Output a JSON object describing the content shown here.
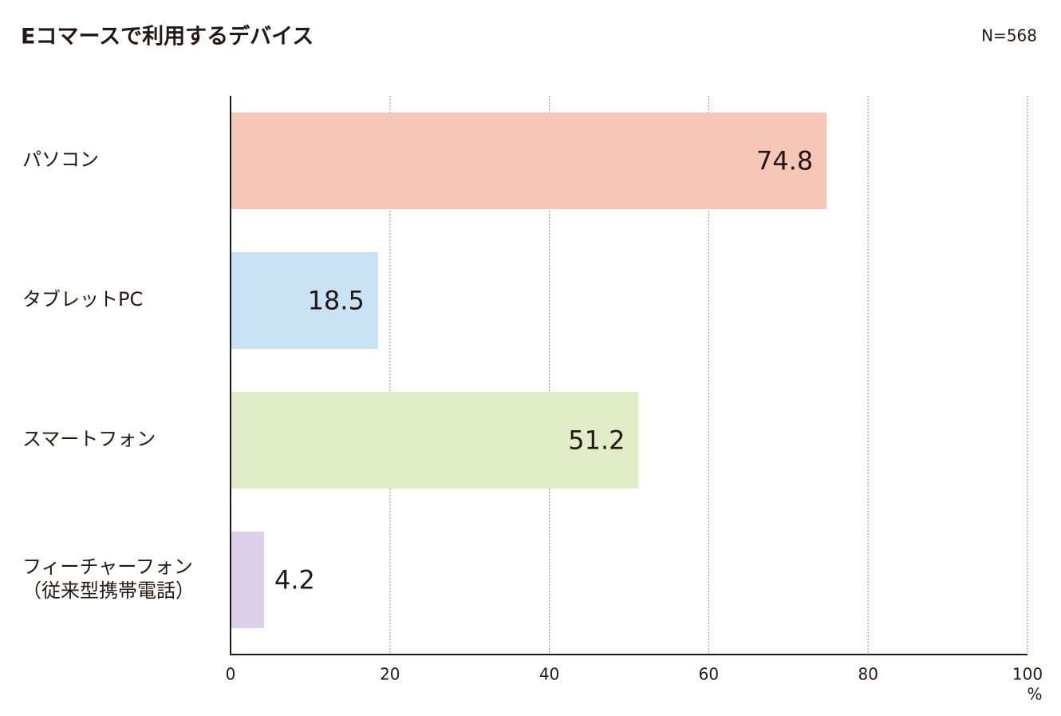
{
  "chart_data": {
    "type": "bar",
    "orientation": "horizontal",
    "title": "Eコマースで利用するデバイス",
    "annotation": "N=568",
    "categories": [
      "パソコン",
      "タブレットPC",
      "スマートフォン",
      "フィーチャーフォン\n（従来型携帯電話）"
    ],
    "values": [
      74.8,
      18.5,
      51.2,
      4.2
    ],
    "colors": [
      "#f6c6b6",
      "#c9e2f4",
      "#e1edc6",
      "#dccfe8"
    ],
    "xlim": [
      0,
      100
    ],
    "xticks": [
      0,
      20,
      40,
      60,
      80,
      100
    ],
    "x_label": "%",
    "grid": true
  }
}
